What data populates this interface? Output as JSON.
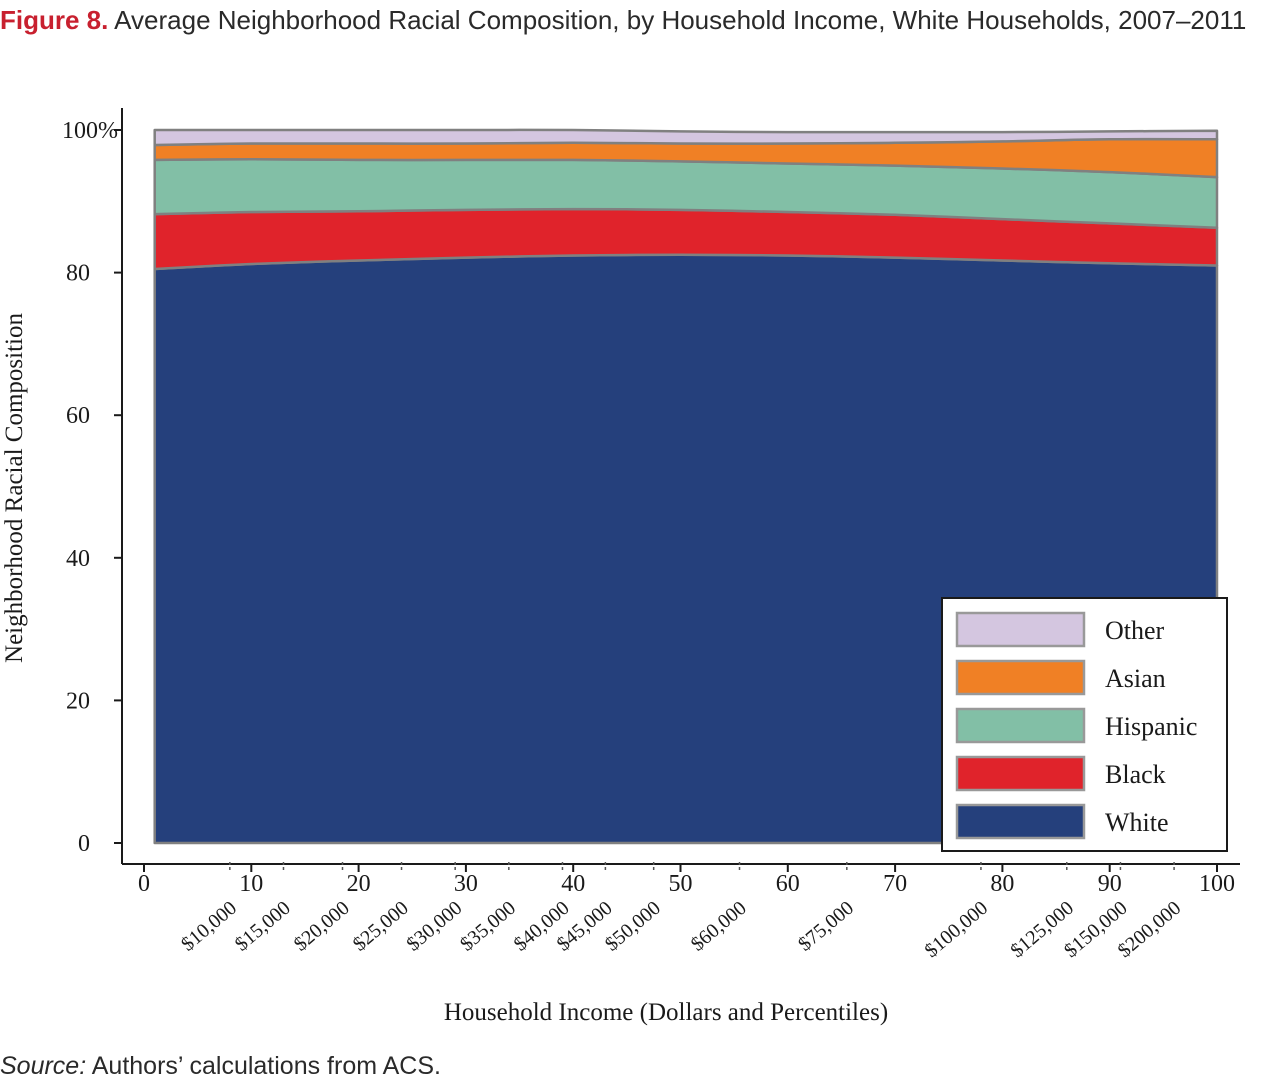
{
  "figure": {
    "label": "Figure 8.",
    "title": "Average Neighborhood Racial Composition, by Household Income, White Households, 2007–2011"
  },
  "source": {
    "label": "Source:",
    "text": "Authors’ calculations from ACS."
  },
  "chart_data": {
    "type": "area",
    "stacked": true,
    "xlabel": "Household Income (Dollars and Percentiles)",
    "ylabel": "Neighborhood Racial Composition",
    "xlim": [
      0,
      100
    ],
    "ylim": [
      0,
      100
    ],
    "x_ticks": [
      0,
      10,
      20,
      30,
      40,
      50,
      60,
      70,
      80,
      90,
      100
    ],
    "y_ticks": [
      {
        "value": 0,
        "label": "0"
      },
      {
        "value": 20,
        "label": "20"
      },
      {
        "value": 40,
        "label": "40"
      },
      {
        "value": 60,
        "label": "60"
      },
      {
        "value": 80,
        "label": "80"
      },
      {
        "value": 100,
        "label": "100%"
      }
    ],
    "income_labels": [
      {
        "label": "$10,000",
        "percentile": 8
      },
      {
        "label": "$15,000",
        "percentile": 13
      },
      {
        "label": "$20,000",
        "percentile": 18.5
      },
      {
        "label": "$25,000",
        "percentile": 24
      },
      {
        "label": "$30,000",
        "percentile": 29
      },
      {
        "label": "$35,000",
        "percentile": 34
      },
      {
        "label": "$40,000",
        "percentile": 39
      },
      {
        "label": "$45,000",
        "percentile": 43
      },
      {
        "label": "$50,000",
        "percentile": 47.5
      },
      {
        "label": "$60,000",
        "percentile": 55.5
      },
      {
        "label": "$75,000",
        "percentile": 65.5
      },
      {
        "label": "$100,000",
        "percentile": 78
      },
      {
        "label": "$125,000",
        "percentile": 86
      },
      {
        "label": "$150,000",
        "percentile": 91
      },
      {
        "label": "$200,000",
        "percentile": 96
      }
    ],
    "x": [
      1,
      10,
      20,
      30,
      40,
      50,
      60,
      70,
      80,
      90,
      100
    ],
    "series": [
      {
        "name": "White",
        "color": "#25407c",
        "values": [
          80.5,
          81.2,
          81.7,
          82.1,
          82.4,
          82.5,
          82.4,
          82.1,
          81.7,
          81.3,
          81.0
        ]
      },
      {
        "name": "Black",
        "color": "#e0232b",
        "values": [
          7.7,
          7.3,
          6.9,
          6.7,
          6.5,
          6.3,
          6.1,
          6.0,
          5.8,
          5.6,
          5.3
        ]
      },
      {
        "name": "Hispanic",
        "color": "#82bfa6",
        "values": [
          7.6,
          7.4,
          7.2,
          7.0,
          6.9,
          6.8,
          6.8,
          6.9,
          7.1,
          7.2,
          7.1
        ]
      },
      {
        "name": "Asian",
        "color": "#f08025",
        "values": [
          2.1,
          2.2,
          2.3,
          2.3,
          2.4,
          2.5,
          2.8,
          3.2,
          3.8,
          4.6,
          5.3
        ]
      },
      {
        "name": "Other",
        "color": "#d4c6e0",
        "values": [
          2.1,
          1.9,
          1.9,
          1.9,
          1.8,
          1.7,
          1.6,
          1.5,
          1.3,
          1.1,
          1.2
        ]
      }
    ],
    "legend": {
      "placement": "bottom-right",
      "order": [
        "Other",
        "Asian",
        "Hispanic",
        "Black",
        "White"
      ]
    },
    "grid": false
  }
}
